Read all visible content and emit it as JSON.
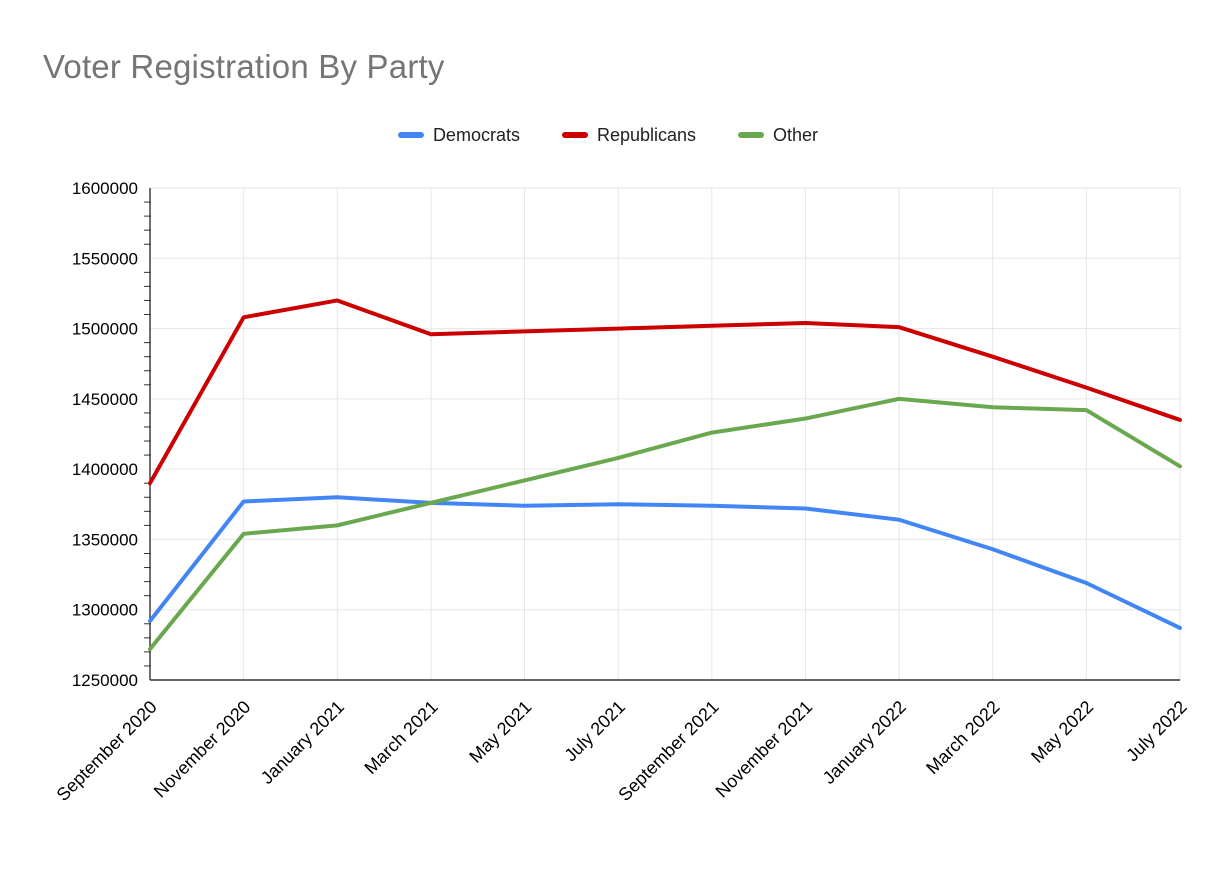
{
  "title": "Voter Registration By Party",
  "legend": {
    "items": [
      {
        "label": "Democrats",
        "color": "#4285f4"
      },
      {
        "label": "Republicans",
        "color": "#cc0000"
      },
      {
        "label": "Other",
        "color": "#6aa84f"
      }
    ]
  },
  "chart_data": {
    "type": "line",
    "title": "Voter Registration By Party",
    "categories": [
      "September 2020",
      "November 2020",
      "January 2021",
      "March 2021",
      "May 2021",
      "July 2021",
      "September 2021",
      "November 2021",
      "January 2022",
      "March 2022",
      "May 2022",
      "July 2022"
    ],
    "series": [
      {
        "name": "Democrats",
        "color": "#4285f4",
        "values": [
          1292000,
          1377000,
          1380000,
          1376000,
          1374000,
          1375000,
          1374000,
          1372000,
          1364000,
          1343000,
          1319000,
          1287000
        ]
      },
      {
        "name": "Republicans",
        "color": "#cc0000",
        "values": [
          1390000,
          1508000,
          1520000,
          1496000,
          1498000,
          1500000,
          1502000,
          1504000,
          1501000,
          1480000,
          1458000,
          1435000
        ]
      },
      {
        "name": "Other",
        "color": "#6aa84f",
        "values": [
          1272000,
          1354000,
          1360000,
          1376000,
          1392000,
          1408000,
          1426000,
          1436000,
          1450000,
          1444000,
          1442000,
          1402000
        ]
      }
    ],
    "xlabel": "",
    "ylabel": "",
    "ylim": [
      1250000,
      1600000
    ],
    "y_major_step": 50000,
    "y_minor_step": 10000,
    "grid": true,
    "legend_position": "top",
    "x_tick_rotation_deg": -45
  },
  "colors": {
    "title_text": "#757575",
    "axis_line": "#333333",
    "grid_line": "#e6e6e6",
    "tick_label": "#000000",
    "background": "#ffffff"
  }
}
